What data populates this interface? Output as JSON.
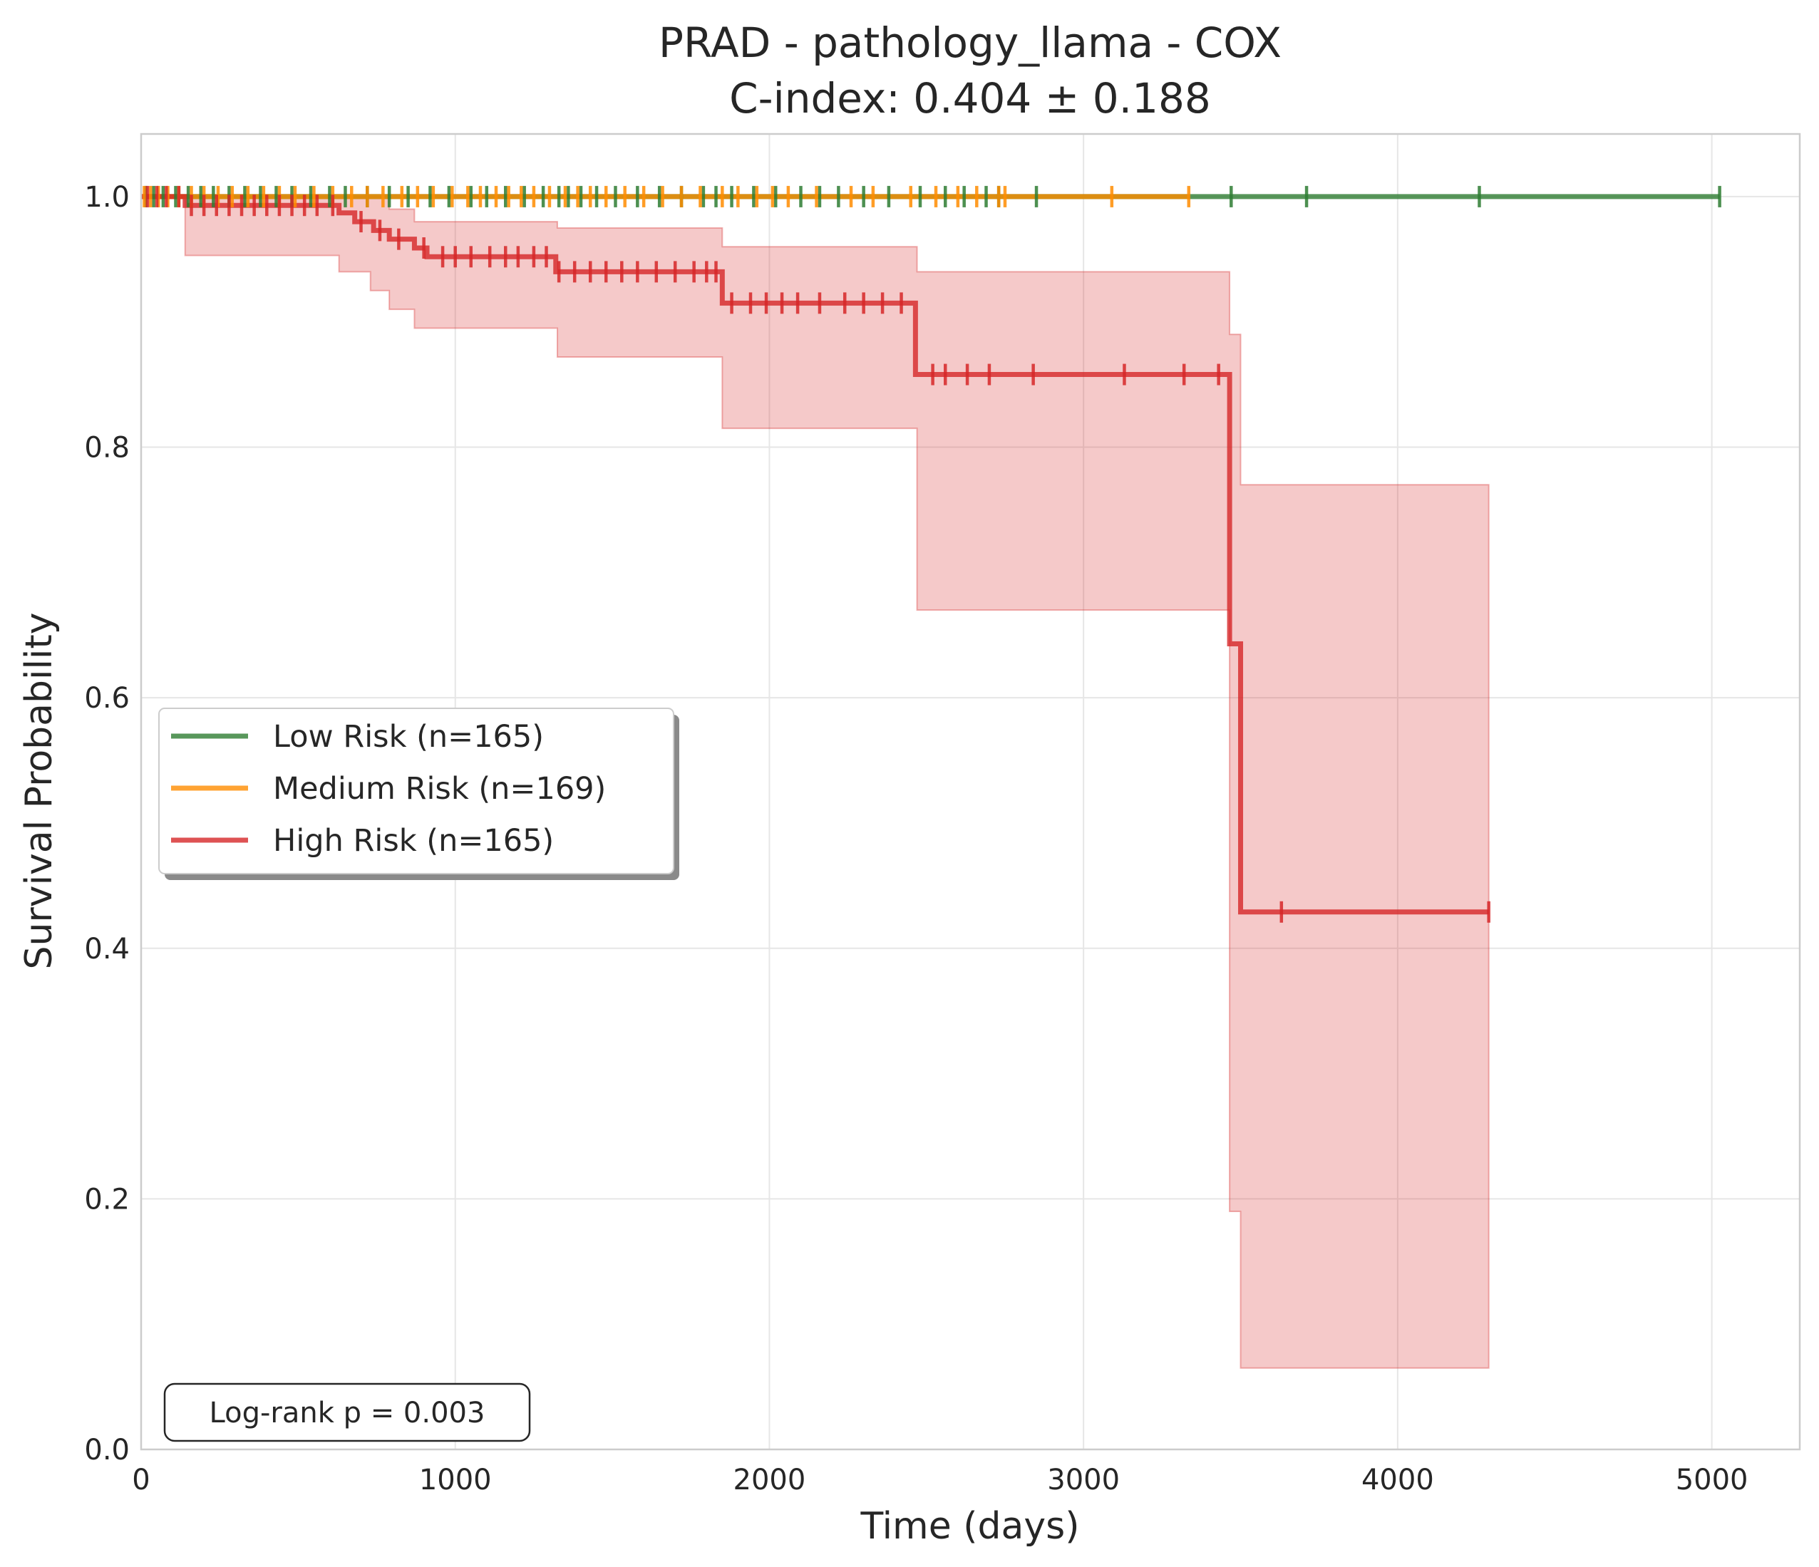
{
  "chart_data": {
    "type": "line",
    "title": "PRAD - pathology_llama - COX",
    "subtitle": "C-index: 0.404 ± 0.188",
    "xlabel": "Time (days)",
    "ylabel": "Survival Probability",
    "xlim": [
      0,
      5280
    ],
    "ylim": [
      0,
      1.05
    ],
    "xticks": [
      0,
      1000,
      2000,
      3000,
      4000,
      5000
    ],
    "xtick_labels": [
      "0",
      "1000",
      "2000",
      "3000",
      "4000",
      "5000"
    ],
    "yticks": [
      0,
      0.2,
      0.4,
      0.6,
      0.8,
      1.0
    ],
    "ytick_labels": [
      "0.0",
      "0.2",
      "0.4",
      "0.6",
      "0.8",
      "1.0"
    ],
    "grid": true,
    "legend_position": "center-left",
    "annotation": "Log-rank p = 0.003",
    "series": [
      {
        "name": "Low Risk (n=165)",
        "color": "#2e7d32",
        "steps": [
          [
            0,
            1.0
          ],
          [
            5025,
            1.0
          ]
        ],
        "ci": [],
        "censor_times": [
          15,
          40,
          70,
          110,
          150,
          190,
          230,
          280,
          330,
          380,
          430,
          480,
          540,
          600,
          650,
          720,
          790,
          850,
          920,
          980,
          1050,
          1100,
          1160,
          1220,
          1280,
          1330,
          1360,
          1400,
          1450,
          1510,
          1580,
          1650,
          1720,
          1790,
          1830,
          1880,
          1950,
          2020,
          2100,
          2160,
          2220,
          2300,
          2380,
          2480,
          2560,
          2620,
          2690,
          2730,
          2850,
          3470,
          3710,
          4260,
          5025
        ]
      },
      {
        "name": "Medium Risk (n=169)",
        "color": "#ff8c00",
        "steps": [
          [
            0,
            1.0
          ],
          [
            3335,
            1.0
          ]
        ],
        "ci": [],
        "censor_times": [
          10,
          30,
          55,
          85,
          120,
          160,
          200,
          245,
          290,
          340,
          390,
          440,
          490,
          550,
          610,
          670,
          720,
          770,
          830,
          880,
          930,
          990,
          1040,
          1080,
          1130,
          1170,
          1210,
          1250,
          1300,
          1350,
          1390,
          1430,
          1480,
          1540,
          1600,
          1660,
          1720,
          1780,
          1850,
          1900,
          1960,
          2010,
          2060,
          2150,
          2260,
          2330,
          2450,
          2530,
          2600,
          2660,
          2730,
          2750,
          3090,
          3335
        ]
      },
      {
        "name": "High Risk (n=165)",
        "color": "#d62728",
        "ci_color": "#d62728",
        "steps": [
          [
            0,
            1.0
          ],
          [
            140,
            0.993
          ],
          [
            630,
            0.987
          ],
          [
            680,
            0.98
          ],
          [
            740,
            0.973
          ],
          [
            790,
            0.966
          ],
          [
            870,
            0.959
          ],
          [
            910,
            0.952
          ],
          [
            1320,
            0.94
          ],
          [
            1850,
            0.915
          ],
          [
            2465,
            0.858
          ],
          [
            3465,
            0.643
          ],
          [
            3500,
            0.429
          ],
          [
            4290,
            0.429
          ]
        ],
        "ci": [
          [
            0,
            1.0,
            1.0
          ],
          [
            140,
            0.953,
            1.0
          ],
          [
            630,
            0.94,
            1.0
          ],
          [
            730,
            0.925,
            1.0
          ],
          [
            790,
            0.91,
            0.99
          ],
          [
            870,
            0.895,
            0.98
          ],
          [
            1325,
            0.872,
            0.975
          ],
          [
            1850,
            0.815,
            0.96
          ],
          [
            2470,
            0.67,
            0.94
          ],
          [
            3465,
            0.19,
            0.89
          ],
          [
            3500,
            0.065,
            0.77
          ],
          [
            4290,
            0.065,
            0.77
          ]
        ],
        "censor_times": [
          20,
          50,
          80,
          120,
          160,
          200,
          240,
          280,
          320,
          360,
          400,
          440,
          480,
          520,
          560,
          610,
          700,
          760,
          820,
          900,
          960,
          1000,
          1050,
          1110,
          1160,
          1200,
          1250,
          1290,
          1330,
          1380,
          1430,
          1480,
          1530,
          1580,
          1640,
          1700,
          1760,
          1800,
          1830,
          1880,
          1940,
          1990,
          2040,
          2090,
          2160,
          2240,
          2300,
          2360,
          2420,
          2520,
          2560,
          2630,
          2700,
          2840,
          3130,
          3320,
          3430,
          3630,
          4290
        ]
      }
    ]
  }
}
